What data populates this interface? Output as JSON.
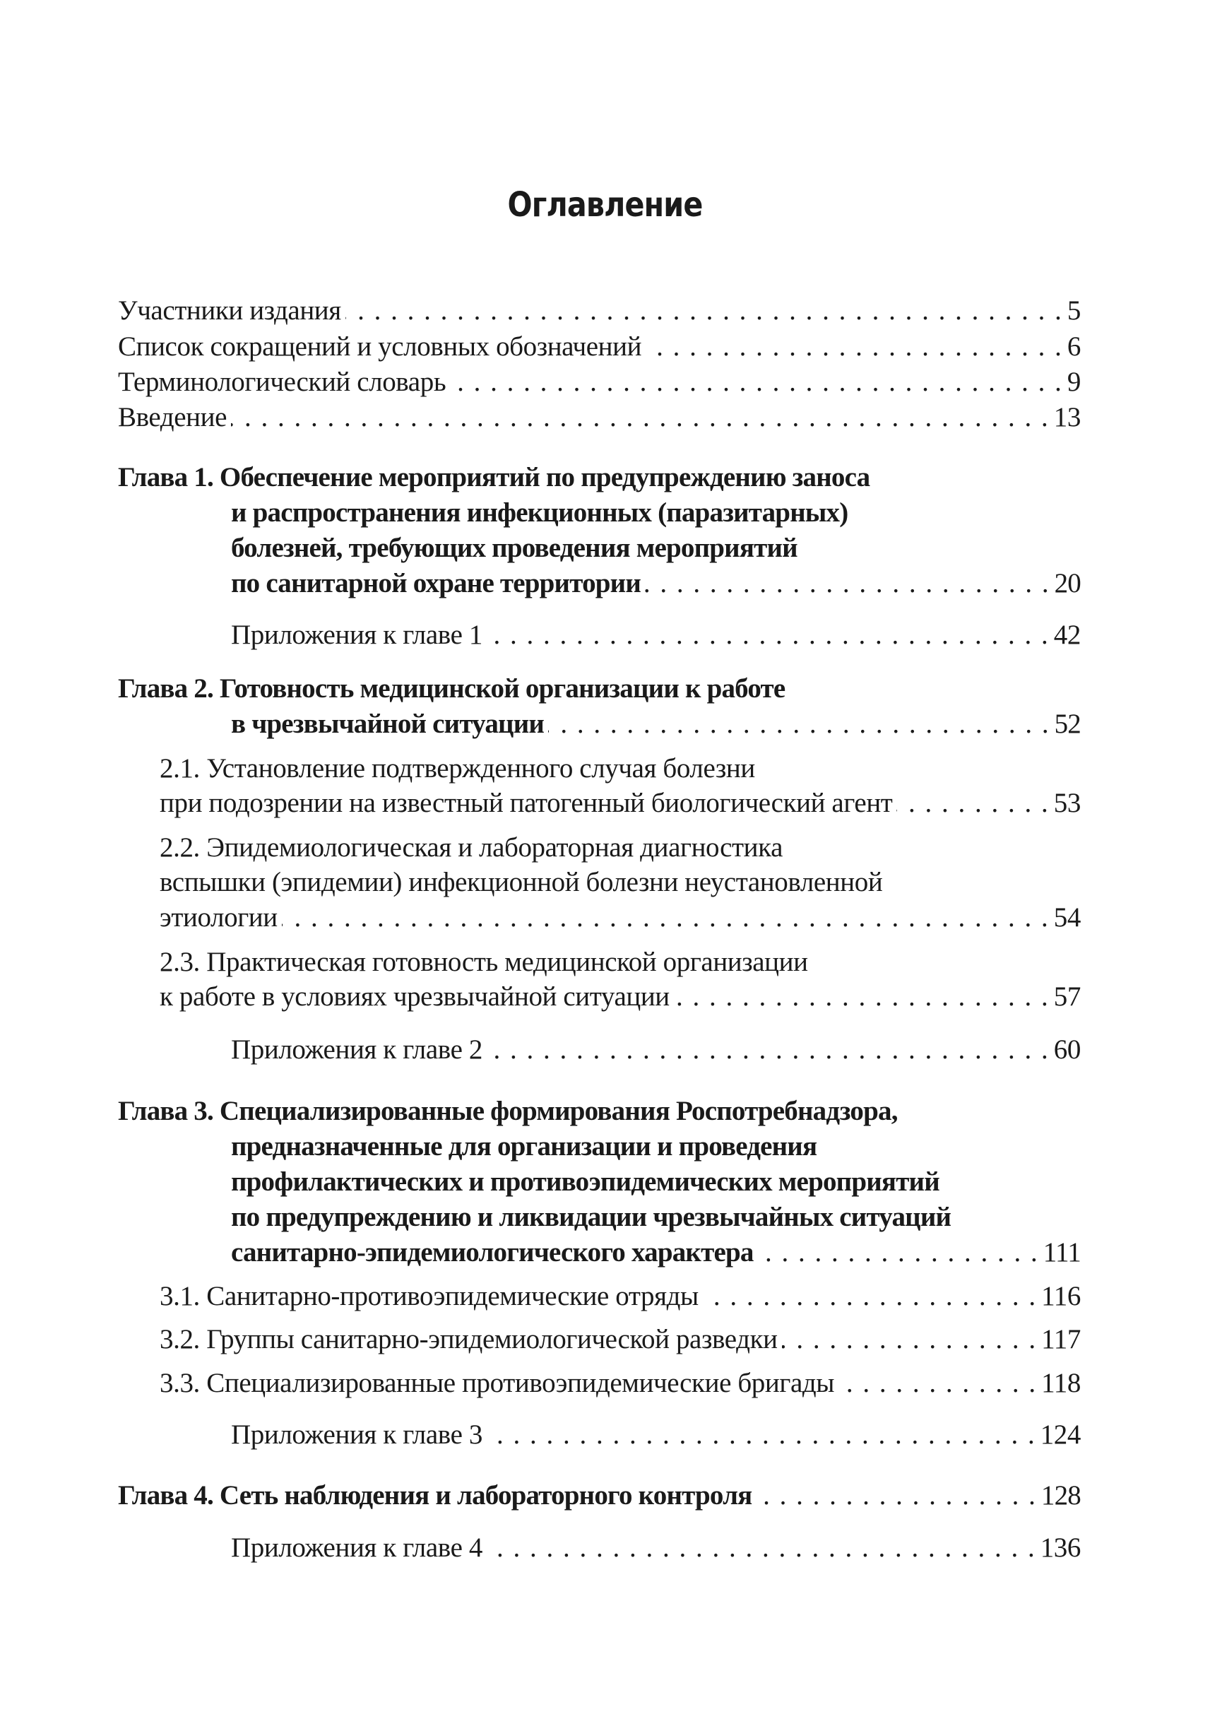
{
  "title": "Оглавление",
  "entries": [
    {
      "text": "Участники издания",
      "page": "5",
      "kind": "top"
    },
    {
      "text": "Список сокращений и условных обозначений",
      "page": "6",
      "kind": "top"
    },
    {
      "text": "Терминологический словарь",
      "page": "9",
      "kind": "top"
    },
    {
      "text": "Введение",
      "page": "13",
      "kind": "top"
    },
    {
      "text": "Глава 1. Обеспечение мероприятий по предупреждению заноса",
      "page": "",
      "kind": "chapter-first"
    },
    {
      "text": "и распространения инфекционных (паразитарных)",
      "page": "",
      "kind": "chapter-cont"
    },
    {
      "text": "болезней, требующих проведения мероприятий",
      "page": "",
      "kind": "chapter-cont"
    },
    {
      "text": "по санитарной охране территории",
      "page": "20",
      "kind": "chapter-cont"
    },
    {
      "text": "Приложения к главе 1",
      "page": "42",
      "kind": "appendix"
    },
    {
      "text": "Глава 2. Готовность медицинской организации к работе",
      "page": "",
      "kind": "chapter-first"
    },
    {
      "text": "в чрезвычайной ситуации",
      "page": "52",
      "kind": "chapter-cont"
    },
    {
      "text": "2.1. Установление подтвержденного случая болезни",
      "page": "",
      "kind": "section"
    },
    {
      "text": "при подозрении на известный патогенный биологический агент",
      "page": "53",
      "kind": "section"
    },
    {
      "text": "2.2. Эпидемиологическая и лабораторная диагностика",
      "page": "",
      "kind": "section"
    },
    {
      "text": "вспышки (эпидемии) инфекционной болезни неустановленной",
      "page": "",
      "kind": "section"
    },
    {
      "text": "этиологии",
      "page": "54",
      "kind": "section"
    },
    {
      "text": "2.3. Практическая готовность медицинской организации",
      "page": "",
      "kind": "section"
    },
    {
      "text": "к работе в условиях чрезвычайной ситуации",
      "page": "57",
      "kind": "section"
    },
    {
      "text": "Приложения к главе 2",
      "page": "60",
      "kind": "appendix"
    },
    {
      "text": "Глава 3. Специализированные формирования Роспотребнадзора,",
      "page": "",
      "kind": "chapter-first"
    },
    {
      "text": "предназначенные для организации и проведения",
      "page": "",
      "kind": "chapter-cont"
    },
    {
      "text": "профилактических и противоэпидемических мероприятий",
      "page": "",
      "kind": "chapter-cont"
    },
    {
      "text": "по предупреждению и ликвидации чрезвычайных ситуаций",
      "page": "",
      "kind": "chapter-cont"
    },
    {
      "text": "санитарно-эпидемиологического характера",
      "page": "111",
      "kind": "chapter-cont"
    },
    {
      "text": "3.1. Санитарно-противоэпидемические отряды",
      "page": "116",
      "kind": "section"
    },
    {
      "text": "3.2. Группы санитарно-эпидемиологической разведки",
      "page": "117",
      "kind": "section"
    },
    {
      "text": "3.3. Специализированные противоэпидемические бригады",
      "page": "118",
      "kind": "section"
    },
    {
      "text": "Приложения к главе 3",
      "page": "124",
      "kind": "appendix"
    },
    {
      "text": "Глава 4. Сеть наблюдения и лабораторного контроля",
      "page": "128",
      "kind": "chapter-first"
    },
    {
      "text": "Приложения к главе 4",
      "page": "136",
      "kind": "appendix"
    }
  ]
}
